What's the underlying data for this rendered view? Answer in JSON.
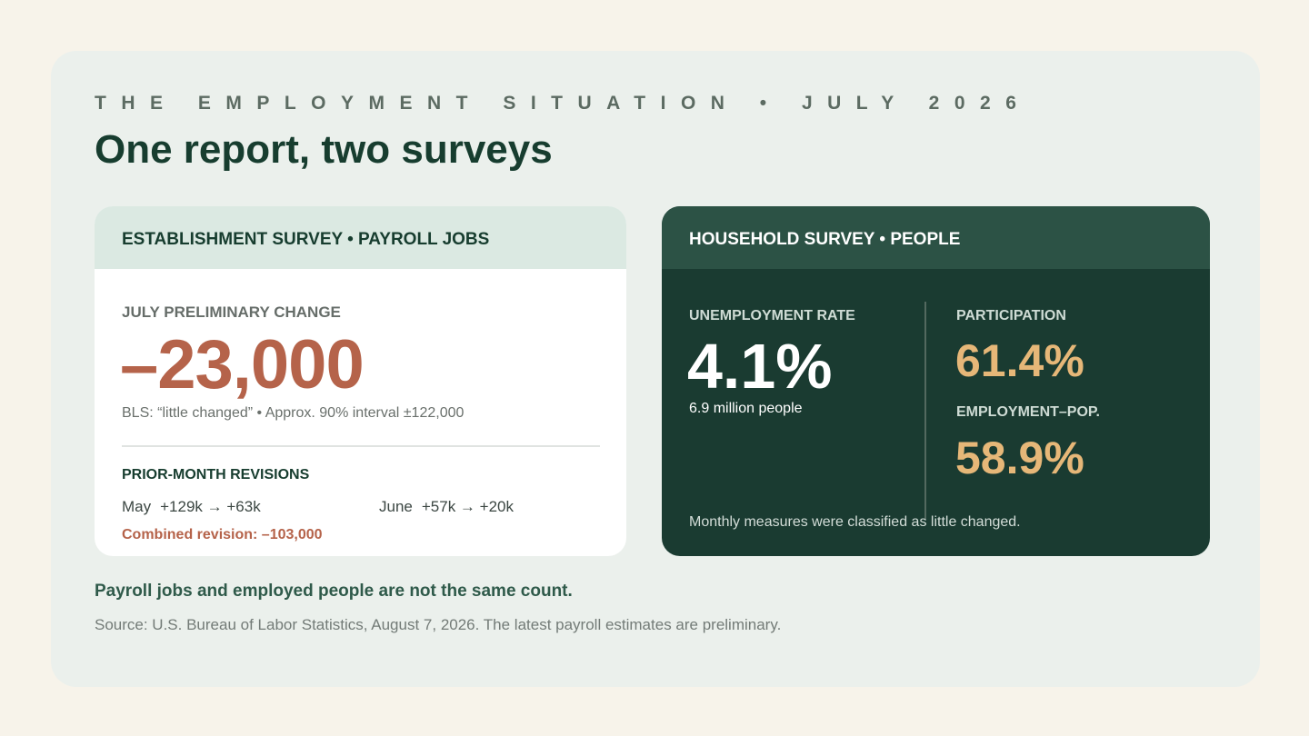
{
  "header": {
    "kicker": "THE EMPLOYMENT SITUATION • JULY 2026",
    "title": "One report, two surveys"
  },
  "establishment": {
    "heading": "ESTABLISHMENT SURVEY • PAYROLL JOBS",
    "change_label": "JULY PRELIMINARY CHANGE",
    "change_value": "–23,000",
    "change_note": "BLS: “little changed” • Approx. 90% interval ±122,000",
    "revisions_label": "PRIOR-MONTH REVISIONS",
    "revisions": [
      {
        "month": "May",
        "change": "+129k → +63k"
      },
      {
        "month": "June",
        "change": "+57k → +20k"
      }
    ],
    "combined_revision": "Combined revision: –103,000"
  },
  "household": {
    "heading": "HOUSEHOLD SURVEY • PEOPLE",
    "unemployment_label": "UNEMPLOYMENT RATE",
    "unemployment_value": "4.1%",
    "unemployment_note": "6.9 million people",
    "participation_label": "PARTICIPATION",
    "participation_value": "61.4%",
    "emp_pop_label": "EMPLOYMENT–POP.",
    "emp_pop_value": "58.9%",
    "footnote": "Monthly measures were classified as little changed."
  },
  "footer": {
    "takeaway": "Payroll jobs and employed people are not the same count.",
    "source": "Source: U.S. Bureau of Labor Statistics, August 7, 2026. The latest payroll estimates are preliminary."
  },
  "colors": {
    "page_bg": "#f7f3ea",
    "card_bg": "#ebf0ec",
    "dark_green": "#1a3b31",
    "accent_rust": "#b5634a",
    "accent_gold": "#e6b778"
  }
}
